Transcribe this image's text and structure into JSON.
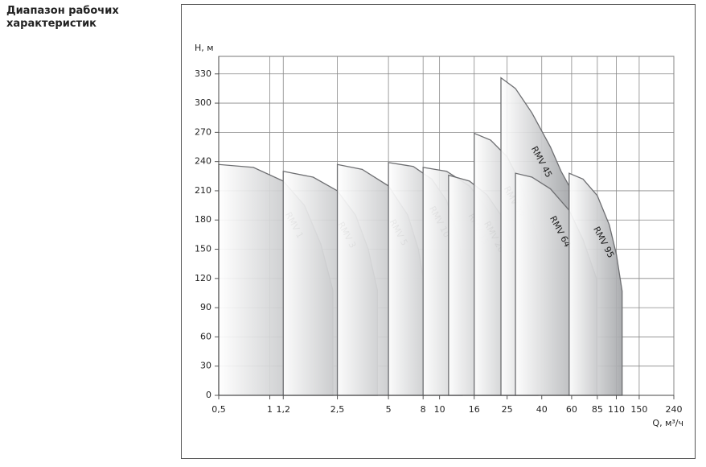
{
  "heading": [
    "Диапазон рабочих",
    "характеристик"
  ],
  "chart_data": {
    "type": "area-range",
    "y_label": "H, м",
    "x_label": "Q, м³/ч",
    "xscale": "log",
    "grid": true,
    "color": "#a4a6a9",
    "xlim": [
      0.5,
      240
    ],
    "ylim": [
      0,
      348
    ],
    "xticks": [
      {
        "value": 0.5,
        "label": "0,5"
      },
      1,
      {
        "value": 1.2,
        "label": "1,2"
      },
      {
        "value": 2.5,
        "label": "2,5"
      },
      5,
      8,
      10,
      16,
      25,
      40,
      60,
      85,
      110,
      150,
      240
    ],
    "yticks": [
      0,
      30,
      60,
      90,
      120,
      150,
      180,
      210,
      240,
      270,
      300,
      330
    ],
    "series": [
      {
        "name": "RMV 1",
        "x": [
          0.5,
          0.8,
          1.2,
          1.6,
          2.0,
          2.35
        ],
        "values": [
          237,
          234,
          220,
          195,
          155,
          108
        ]
      },
      {
        "name": "RMV 3",
        "x": [
          1.2,
          1.8,
          2.5,
          3.2,
          3.8,
          4.3
        ],
        "values": [
          230,
          224,
          210,
          185,
          150,
          108
        ]
      },
      {
        "name": "RMV 5",
        "x": [
          2.5,
          3.5,
          5,
          6.5,
          7.5,
          8.2
        ],
        "values": [
          237,
          232,
          215,
          185,
          150,
          110
        ]
      },
      {
        "name": "RMV 10",
        "x": [
          5,
          7,
          9,
          11,
          12.5,
          13.6
        ],
        "values": [
          239,
          235,
          222,
          200,
          170,
          140
        ]
      },
      {
        "name": "RMV 15",
        "x": [
          8,
          11,
          15,
          19,
          21.5,
          23
        ],
        "values": [
          234,
          230,
          215,
          192,
          165,
          143
        ]
      },
      {
        "name": "RMV 20",
        "x": [
          11.3,
          15,
          19,
          23,
          26,
          28
        ],
        "values": [
          226,
          220,
          206,
          185,
          160,
          140
        ]
      },
      {
        "name": "RMV 32",
        "x": [
          16,
          20,
          25,
          30,
          34,
          38
        ],
        "values": [
          269,
          262,
          245,
          218,
          190,
          158
        ]
      },
      {
        "name": "RMV 45",
        "x": [
          23,
          28,
          35,
          45,
          52,
          58
        ],
        "values": [
          326,
          315,
          290,
          255,
          230,
          215
        ]
      },
      {
        "name": "RMV 64",
        "x": [
          28,
          35,
          45,
          58,
          70,
          84
        ],
        "values": [
          228,
          224,
          212,
          190,
          160,
          120
        ]
      },
      {
        "name": "RMV 95",
        "x": [
          58,
          70,
          85,
          100,
          110,
          119
        ],
        "values": [
          228,
          222,
          205,
          175,
          145,
          107
        ]
      }
    ]
  }
}
